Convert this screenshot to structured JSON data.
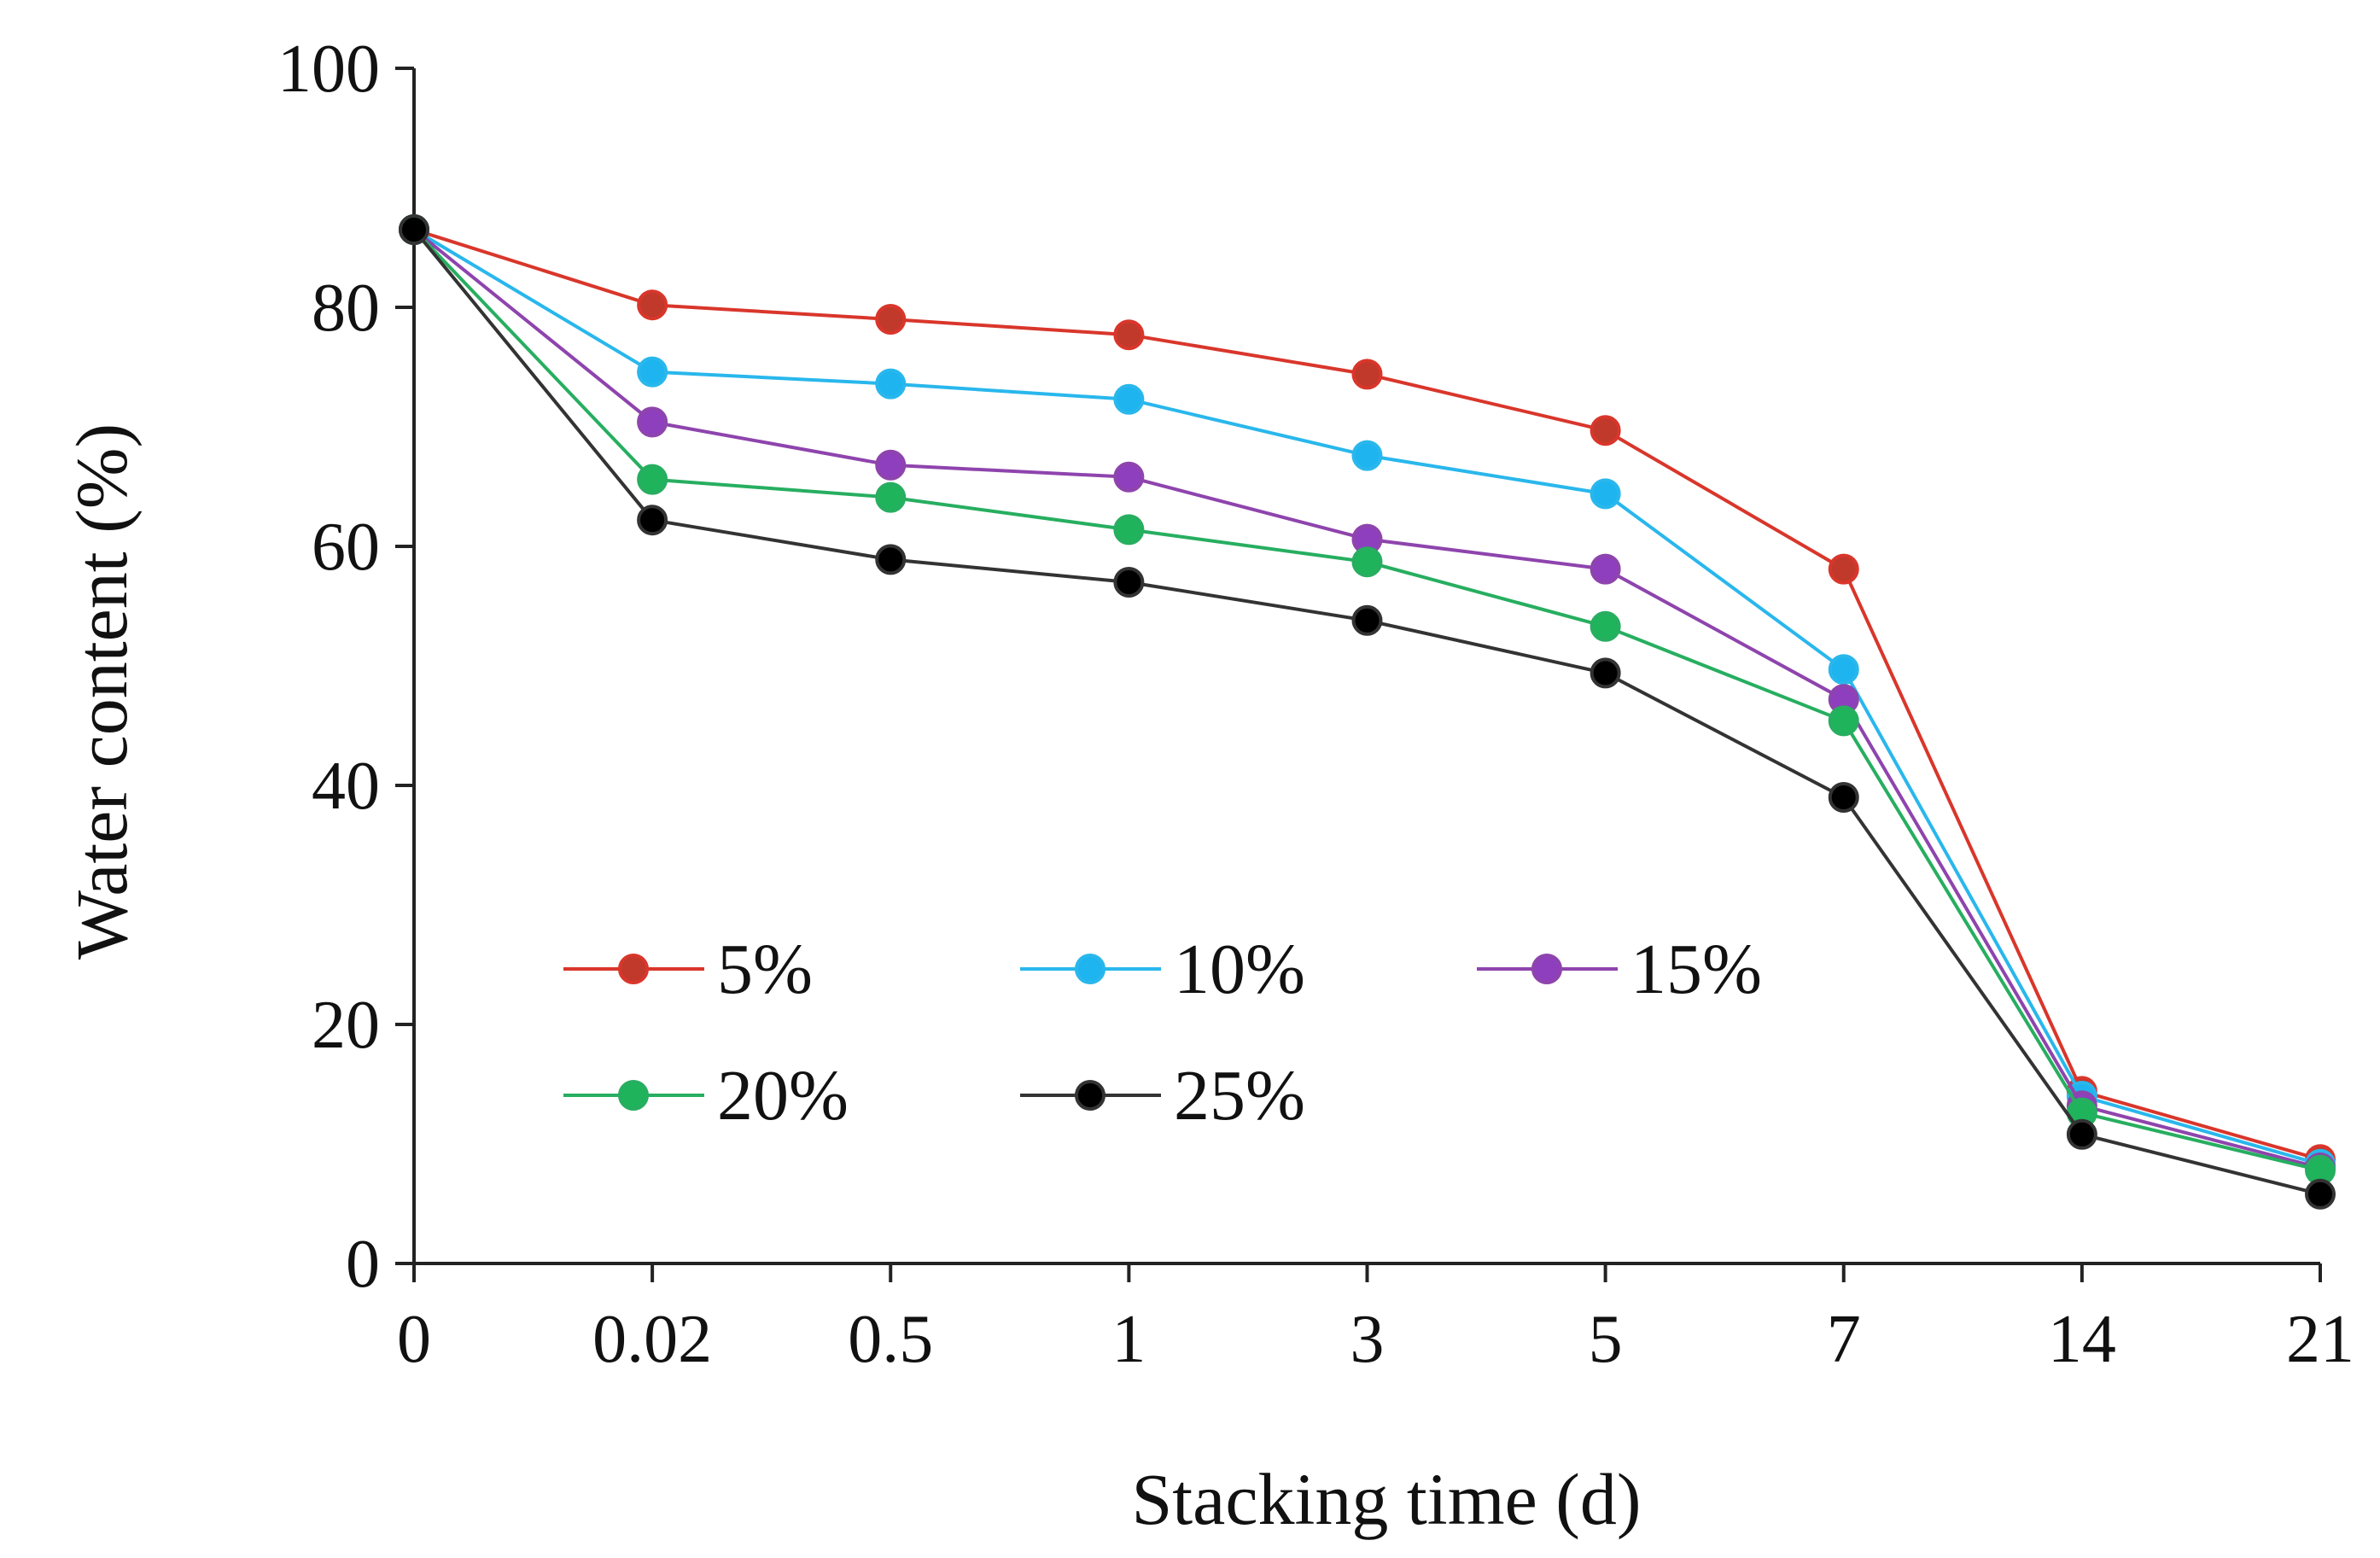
{
  "chart_data": {
    "type": "line",
    "title": "",
    "xlabel": "Stacking time (d)",
    "ylabel": "Water content (%)",
    "categories": [
      "0",
      "0.02",
      "0.5",
      "1",
      "3",
      "5",
      "7",
      "14",
      "21"
    ],
    "ylim": [
      0,
      100
    ],
    "yticks": [
      0,
      20,
      40,
      60,
      80,
      100
    ],
    "grid": false,
    "legend_position": "lower-left",
    "series": [
      {
        "name": "5%",
        "color": "#d9362b",
        "marker_color": "#c0392b",
        "values": [
          86.5,
          80.2,
          79.0,
          77.7,
          74.4,
          69.7,
          58.1,
          14.4,
          8.7
        ]
      },
      {
        "name": "10%",
        "color": "#29b7ec",
        "marker_color": "#1eb4ef",
        "values": [
          86.5,
          74.6,
          73.6,
          72.3,
          67.6,
          64.4,
          49.7,
          14.0,
          8.3
        ]
      },
      {
        "name": "15%",
        "color": "#8e44ad",
        "marker_color": "#8e3fbd",
        "values": [
          86.5,
          70.4,
          66.8,
          65.8,
          60.6,
          58.1,
          47.2,
          13.2,
          8.0
        ]
      },
      {
        "name": "20%",
        "color": "#27ae60",
        "marker_color": "#1fb35c",
        "values": [
          86.5,
          65.6,
          64.1,
          61.4,
          58.7,
          53.3,
          45.4,
          12.6,
          7.8
        ]
      },
      {
        "name": "25%",
        "color": "#333333",
        "marker_color": "#000000",
        "values": [
          86.5,
          62.2,
          58.9,
          57.0,
          53.8,
          49.4,
          39.0,
          10.8,
          5.8
        ]
      }
    ]
  }
}
